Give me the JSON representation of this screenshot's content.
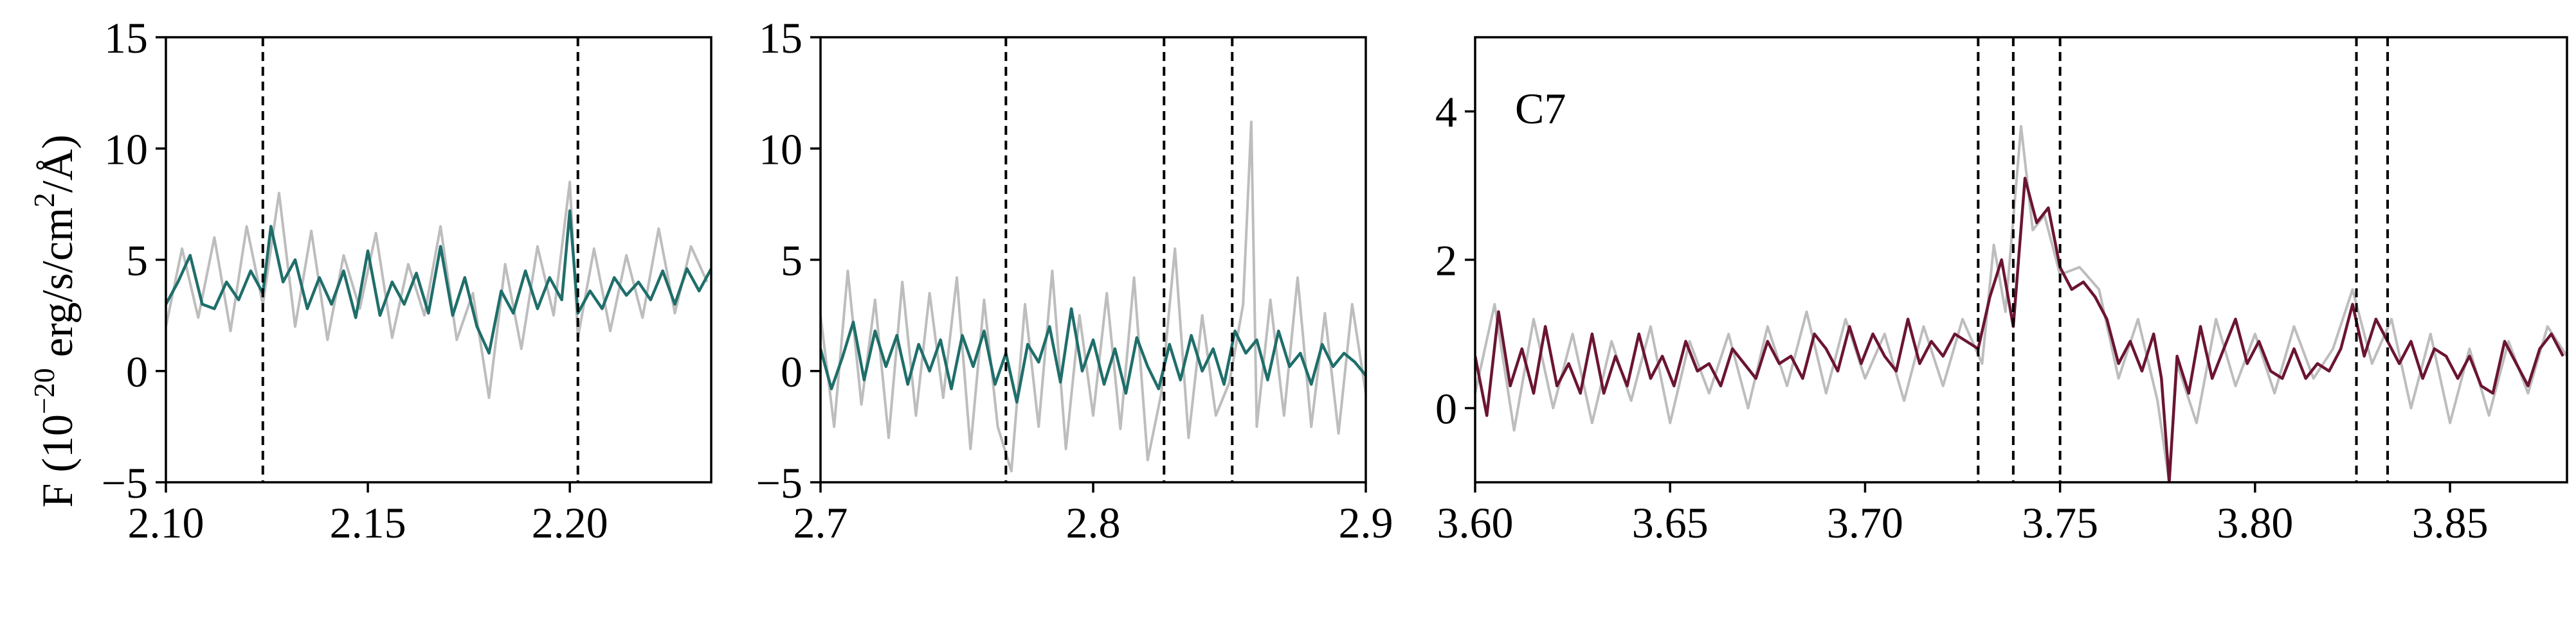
{
  "figure": {
    "ylabel": {
      "prefix": "F (10",
      "exp": "−20",
      "mid": " erg/s/cm",
      "exp2": "2",
      "suffix": "/Å)"
    }
  },
  "chart_data": [
    {
      "type": "line",
      "title": "",
      "xlabel": "",
      "ylabel": "F (10^-20 erg/s/cm^2/Å)",
      "xlim": [
        2.1,
        2.235
      ],
      "ylim": [
        -5,
        15
      ],
      "xticks": [
        2.1,
        2.15,
        2.2
      ],
      "xtick_labels": [
        "2.10",
        "2.15",
        "2.20"
      ],
      "yticks": [
        -5,
        0,
        5,
        10,
        15
      ],
      "ytick_labels": [
        "−5",
        "0",
        "5",
        "10",
        "15"
      ],
      "vlines": [
        2.124,
        2.202
      ],
      "annotation": "",
      "colors": {
        "smooth": "#1f6e6a",
        "raw": "#bdbdbd"
      },
      "series": [
        {
          "role": "raw",
          "x": [
            2.1,
            2.104,
            2.108,
            2.112,
            2.116,
            2.12,
            2.124,
            2.128,
            2.132,
            2.136,
            2.14,
            2.144,
            2.148,
            2.152,
            2.156,
            2.16,
            2.164,
            2.168,
            2.172,
            2.176,
            2.18,
            2.184,
            2.188,
            2.192,
            2.196,
            2.2,
            2.202,
            2.206,
            2.21,
            2.214,
            2.218,
            2.222,
            2.226,
            2.23,
            2.234
          ],
          "y": [
            2.0,
            5.5,
            2.4,
            6.0,
            1.8,
            6.5,
            3.0,
            8.0,
            2.0,
            6.3,
            1.4,
            5.2,
            2.8,
            6.2,
            1.5,
            4.8,
            2.5,
            6.5,
            1.4,
            3.5,
            -1.2,
            4.8,
            1.0,
            5.6,
            2.5,
            8.5,
            1.5,
            5.5,
            1.8,
            5.2,
            2.4,
            6.4,
            2.6,
            5.6,
            4.0
          ]
        },
        {
          "role": "smooth",
          "x": [
            2.1,
            2.103,
            2.106,
            2.109,
            2.112,
            2.115,
            2.118,
            2.121,
            2.124,
            2.126,
            2.129,
            2.132,
            2.135,
            2.138,
            2.141,
            2.144,
            2.147,
            2.15,
            2.153,
            2.156,
            2.159,
            2.162,
            2.165,
            2.168,
            2.171,
            2.174,
            2.177,
            2.18,
            2.183,
            2.186,
            2.189,
            2.192,
            2.195,
            2.198,
            2.2,
            2.202,
            2.205,
            2.208,
            2.211,
            2.214,
            2.217,
            2.22,
            2.223,
            2.226,
            2.229,
            2.232,
            2.235
          ],
          "y": [
            3.0,
            4.0,
            5.2,
            3.0,
            2.8,
            4.0,
            3.2,
            4.5,
            3.5,
            6.5,
            4.0,
            5.0,
            2.8,
            4.2,
            3.0,
            4.5,
            2.4,
            5.4,
            2.5,
            4.0,
            3.0,
            4.4,
            2.6,
            5.6,
            2.5,
            4.2,
            2.0,
            0.8,
            3.6,
            2.6,
            4.5,
            2.8,
            4.2,
            3.2,
            7.2,
            2.6,
            3.6,
            2.8,
            4.2,
            3.4,
            4.0,
            3.2,
            4.5,
            3.0,
            4.6,
            3.6,
            4.6
          ]
        }
      ]
    },
    {
      "type": "line",
      "title": "",
      "xlabel": "",
      "ylabel": "",
      "xlim": [
        2.7,
        2.9
      ],
      "ylim": [
        -5,
        15
      ],
      "xticks": [
        2.7,
        2.8,
        2.9
      ],
      "xtick_labels": [
        "2.7",
        "2.8",
        "2.9"
      ],
      "yticks": [
        -5,
        0,
        5,
        10,
        15
      ],
      "ytick_labels": [
        "−5",
        "0",
        "5",
        "10",
        "15"
      ],
      "vlines": [
        2.768,
        2.826,
        2.851
      ],
      "annotation": "",
      "colors": {
        "smooth": "#1f6e6a",
        "raw": "#bdbdbd"
      },
      "series": [
        {
          "role": "raw",
          "x": [
            2.7,
            2.705,
            2.71,
            2.715,
            2.72,
            2.725,
            2.73,
            2.735,
            2.74,
            2.745,
            2.75,
            2.755,
            2.76,
            2.765,
            2.77,
            2.775,
            2.78,
            2.785,
            2.79,
            2.795,
            2.8,
            2.805,
            2.81,
            2.815,
            2.82,
            2.825,
            2.83,
            2.835,
            2.84,
            2.845,
            2.85,
            2.855,
            2.858,
            2.86,
            2.865,
            2.87,
            2.875,
            2.88,
            2.885,
            2.89,
            2.895,
            2.9
          ],
          "y": [
            2.5,
            -2.5,
            4.5,
            -1.5,
            3.2,
            -3.0,
            4.0,
            -2.0,
            3.5,
            -1.2,
            4.2,
            -3.5,
            3.2,
            -2.5,
            -4.5,
            3.0,
            -2.5,
            4.5,
            -3.5,
            2.5,
            -2.0,
            3.5,
            -2.6,
            4.2,
            -4.0,
            -1.0,
            5.5,
            -3.0,
            2.5,
            -2.0,
            -0.5,
            3.0,
            11.2,
            -2.5,
            3.2,
            -2.0,
            4.2,
            -2.5,
            2.6,
            -2.8,
            3.0,
            -1.0
          ]
        },
        {
          "role": "smooth",
          "x": [
            2.7,
            2.704,
            2.708,
            2.712,
            2.716,
            2.72,
            2.724,
            2.728,
            2.732,
            2.736,
            2.74,
            2.744,
            2.748,
            2.752,
            2.756,
            2.76,
            2.764,
            2.768,
            2.772,
            2.776,
            2.78,
            2.784,
            2.788,
            2.792,
            2.796,
            2.8,
            2.804,
            2.808,
            2.812,
            2.816,
            2.82,
            2.824,
            2.828,
            2.832,
            2.836,
            2.84,
            2.844,
            2.848,
            2.852,
            2.856,
            2.86,
            2.864,
            2.868,
            2.872,
            2.876,
            2.88,
            2.884,
            2.888,
            2.892,
            2.896,
            2.9
          ],
          "y": [
            1.0,
            -0.8,
            0.6,
            2.2,
            -0.4,
            1.8,
            0.2,
            1.6,
            -0.6,
            1.2,
            0.0,
            1.4,
            -0.8,
            1.6,
            0.2,
            1.8,
            -0.6,
            0.8,
            -1.4,
            1.2,
            0.4,
            2.0,
            -0.5,
            2.8,
            0.0,
            1.4,
            -0.6,
            1.0,
            -1.0,
            1.5,
            0.2,
            -0.8,
            1.2,
            -0.4,
            1.6,
            0.0,
            1.0,
            -0.6,
            1.8,
            0.8,
            1.4,
            -0.4,
            1.8,
            0.2,
            0.8,
            -0.6,
            1.2,
            0.2,
            0.8,
            0.4,
            -0.2
          ]
        }
      ]
    },
    {
      "type": "line",
      "title": "",
      "xlabel": "",
      "ylabel": "",
      "xlim": [
        3.6,
        3.88
      ],
      "ylim": [
        -1,
        5
      ],
      "xticks": [
        3.6,
        3.65,
        3.7,
        3.75,
        3.8,
        3.85
      ],
      "xtick_labels": [
        "3.60",
        "3.65",
        "3.70",
        "3.75",
        "3.80",
        "3.85"
      ],
      "yticks": [
        0,
        2,
        4
      ],
      "ytick_labels": [
        "0",
        "2",
        "4"
      ],
      "vlines": [
        3.729,
        3.738,
        3.75,
        3.826,
        3.834
      ],
      "annotation": "C7",
      "colors": {
        "smooth": "#6b1433",
        "raw": "#bdbdbd"
      },
      "series": [
        {
          "role": "raw",
          "x": [
            3.6,
            3.605,
            3.61,
            3.615,
            3.62,
            3.625,
            3.63,
            3.635,
            3.64,
            3.645,
            3.65,
            3.655,
            3.66,
            3.665,
            3.67,
            3.675,
            3.68,
            3.685,
            3.69,
            3.695,
            3.7,
            3.705,
            3.71,
            3.715,
            3.72,
            3.725,
            3.73,
            3.733,
            3.736,
            3.74,
            3.743,
            3.746,
            3.75,
            3.755,
            3.76,
            3.765,
            3.77,
            3.775,
            3.778,
            3.78,
            3.785,
            3.79,
            3.795,
            3.8,
            3.805,
            3.81,
            3.815,
            3.82,
            3.825,
            3.83,
            3.835,
            3.84,
            3.845,
            3.85,
            3.855,
            3.86,
            3.865,
            3.87,
            3.875,
            3.88
          ],
          "y": [
            0.2,
            1.4,
            -0.3,
            1.2,
            0.0,
            1.0,
            -0.2,
            0.9,
            0.1,
            1.1,
            -0.2,
            0.9,
            0.2,
            1.0,
            0.0,
            1.1,
            0.3,
            1.3,
            0.2,
            1.2,
            0.4,
            1.0,
            0.1,
            1.1,
            0.3,
            1.2,
            0.6,
            2.2,
            1.3,
            3.8,
            2.4,
            2.6,
            1.8,
            1.9,
            1.6,
            0.4,
            1.2,
            0.1,
            -1.0,
            0.6,
            -0.2,
            1.2,
            0.3,
            1.0,
            0.2,
            1.1,
            0.4,
            0.8,
            1.6,
            0.6,
            1.2,
            0.0,
            1.0,
            -0.2,
            0.8,
            -0.1,
            0.9,
            0.2,
            1.1,
            0.7
          ]
        },
        {
          "role": "smooth",
          "x": [
            3.6,
            3.603,
            3.606,
            3.609,
            3.612,
            3.615,
            3.618,
            3.621,
            3.624,
            3.627,
            3.63,
            3.633,
            3.636,
            3.639,
            3.642,
            3.645,
            3.648,
            3.651,
            3.654,
            3.657,
            3.66,
            3.663,
            3.666,
            3.669,
            3.672,
            3.675,
            3.678,
            3.681,
            3.684,
            3.687,
            3.69,
            3.693,
            3.696,
            3.699,
            3.702,
            3.705,
            3.708,
            3.711,
            3.714,
            3.717,
            3.72,
            3.723,
            3.726,
            3.729,
            3.732,
            3.735,
            3.738,
            3.741,
            3.744,
            3.747,
            3.75,
            3.753,
            3.756,
            3.759,
            3.762,
            3.765,
            3.768,
            3.771,
            3.774,
            3.776,
            3.778,
            3.78,
            3.783,
            3.786,
            3.789,
            3.792,
            3.795,
            3.798,
            3.801,
            3.804,
            3.807,
            3.81,
            3.813,
            3.816,
            3.819,
            3.822,
            3.825,
            3.828,
            3.831,
            3.834,
            3.837,
            3.84,
            3.843,
            3.846,
            3.849,
            3.852,
            3.855,
            3.858,
            3.861,
            3.864,
            3.867,
            3.87,
            3.873,
            3.876,
            3.879
          ],
          "y": [
            0.7,
            -0.1,
            1.3,
            0.3,
            0.8,
            0.2,
            1.1,
            0.3,
            0.6,
            0.2,
            1.0,
            0.2,
            0.7,
            0.3,
            1.0,
            0.4,
            0.7,
            0.3,
            0.9,
            0.5,
            0.6,
            0.3,
            0.8,
            0.6,
            0.4,
            0.9,
            0.6,
            0.7,
            0.4,
            1.0,
            0.8,
            0.5,
            1.1,
            0.6,
            1.0,
            0.7,
            0.5,
            1.2,
            0.6,
            0.9,
            0.7,
            1.0,
            0.9,
            0.8,
            1.5,
            2.0,
            1.1,
            3.1,
            2.5,
            2.7,
            1.9,
            1.6,
            1.7,
            1.5,
            1.2,
            0.6,
            0.9,
            0.5,
            1.0,
            0.4,
            -1.0,
            0.7,
            0.2,
            1.1,
            0.4,
            0.8,
            1.2,
            0.6,
            0.9,
            0.5,
            0.4,
            0.8,
            0.4,
            0.6,
            0.5,
            0.8,
            1.4,
            0.7,
            1.2,
            0.9,
            0.6,
            0.9,
            0.4,
            0.8,
            0.7,
            0.4,
            0.7,
            0.3,
            0.2,
            0.9,
            0.6,
            0.3,
            0.8,
            1.0,
            0.7
          ]
        }
      ]
    }
  ]
}
